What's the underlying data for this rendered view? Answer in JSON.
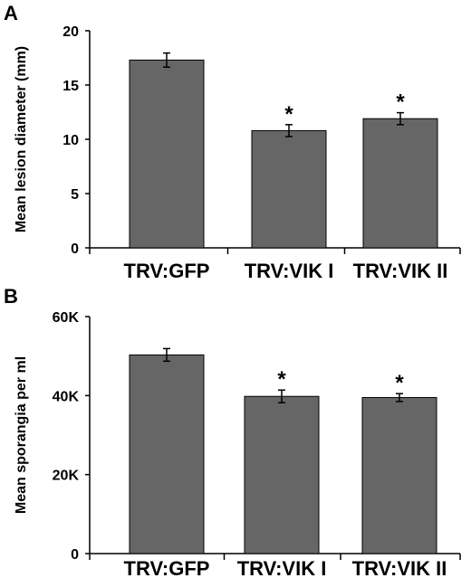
{
  "chart_data": [
    {
      "panel": "A",
      "type": "bar",
      "categories": [
        "TRV:GFP",
        "TRV:VIK I",
        "TRV:VIK II"
      ],
      "values": [
        17.3,
        10.8,
        11.9
      ],
      "errors": [
        0.65,
        0.55,
        0.55
      ],
      "annotations": [
        "",
        "*",
        "*"
      ],
      "title": "",
      "xlabel": "",
      "ylabel": "Mean lesion diameter (mm)",
      "ylim": [
        0,
        20
      ],
      "yticks": [
        0,
        5,
        10,
        15,
        20
      ],
      "ytick_labels": [
        "0",
        "5",
        "10",
        "15",
        "20"
      ],
      "bar_color": "#666666",
      "grid": false,
      "legend": "none"
    },
    {
      "panel": "B",
      "type": "bar",
      "categories": [
        "TRV:GFP",
        "TRV:VIK I",
        "TRV:VIK II"
      ],
      "values": [
        50300,
        39800,
        39500
      ],
      "errors": [
        1600,
        1600,
        1000
      ],
      "annotations": [
        "",
        "*",
        "*"
      ],
      "title": "",
      "xlabel": "",
      "ylabel": "Mean sporangia per ml",
      "ylim": [
        0,
        60000
      ],
      "yticks": [
        0,
        20000,
        40000,
        60000
      ],
      "ytick_labels": [
        "0",
        "20K",
        "40K",
        "60K"
      ],
      "bar_color": "#666666",
      "grid": false,
      "legend": "none"
    }
  ]
}
